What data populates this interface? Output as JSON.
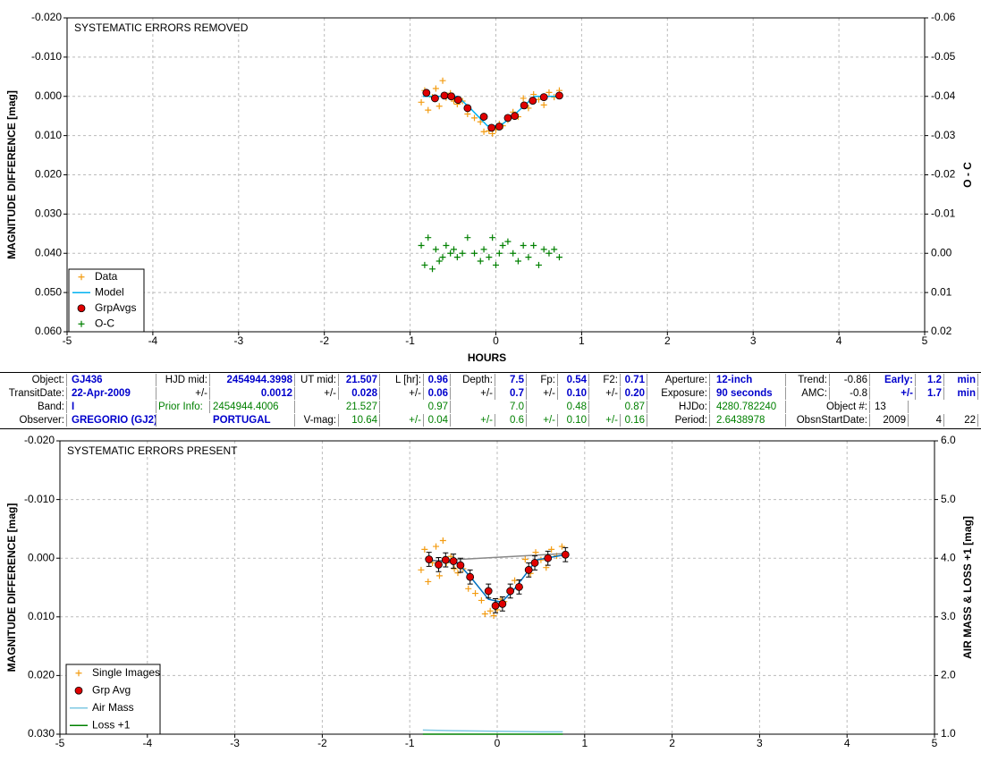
{
  "chart_data": [
    {
      "type": "scatter",
      "title": "SYSTEMATIC ERRORS REMOVED",
      "xlabel": "HOURS",
      "ylabel": "MAGNITUDE DIFFERENCE [mag]",
      "y2label": "O - C",
      "xlim": [
        -5,
        5
      ],
      "xticks": [
        -5,
        -4,
        -3,
        -2,
        -1,
        0,
        1,
        2,
        3,
        4,
        5
      ],
      "ylim": [
        0.06,
        -0.02
      ],
      "yticks": [
        {
          "value": -0.02,
          "label": "-0.020"
        },
        {
          "value": -0.01,
          "label": "-0.010"
        },
        {
          "value": 0,
          "label": "0.000"
        },
        {
          "value": 0.01,
          "label": "0.010"
        },
        {
          "value": 0.02,
          "label": "0.020"
        },
        {
          "value": 0.03,
          "label": "0.030"
        },
        {
          "value": 0.04,
          "label": "0.040"
        },
        {
          "value": 0.05,
          "label": "0.050"
        },
        {
          "value": 0.06,
          "label": "0.060"
        }
      ],
      "y2lim": [
        0.02,
        -0.06
      ],
      "y2ticks": [
        -0.06,
        -0.05,
        -0.04,
        -0.03,
        -0.02,
        -0.01,
        {
          "value": 0,
          "label": "0.00"
        },
        0.01,
        0.02
      ],
      "grid": true,
      "legend": "lower-left",
      "series": [
        {
          "name": "Data",
          "color": "#f39c12",
          "style": "plus",
          "x": [
            -0.87,
            -0.83,
            -0.79,
            -0.74,
            -0.7,
            -0.66,
            -0.62,
            -0.58,
            -0.53,
            -0.49,
            -0.45,
            -0.39,
            -0.33,
            -0.25,
            -0.18,
            -0.14,
            -0.08,
            -0.04,
            0.0,
            0.04,
            0.08,
            0.14,
            0.2,
            0.26,
            0.32,
            0.38,
            0.44,
            0.5,
            0.56,
            0.62,
            0.68,
            0.74
          ],
          "values": [
            0.0015,
            -0.0015,
            0.0035,
            0.0002,
            -0.002,
            0.0025,
            -0.004,
            0.0003,
            -0.0008,
            0.0012,
            0.002,
            0.0012,
            0.0045,
            0.0055,
            0.0065,
            0.009,
            0.0088,
            0.0095,
            0.0085,
            0.007,
            0.0075,
            0.006,
            0.004,
            0.0052,
            0.0005,
            0.003,
            -0.0005,
            0.0008,
            0.0022,
            -0.001,
            0.0002,
            -0.0015
          ]
        },
        {
          "name": "Model",
          "color": "#00b0f0",
          "style": "line",
          "x": [
            -0.85,
            -0.45,
            -0.3,
            -0.1,
            0.05,
            0.2,
            0.45,
            0.75
          ],
          "values": [
            0,
            0,
            0.003,
            0.0075,
            0.0075,
            0.005,
            0,
            0
          ]
        },
        {
          "name": "GrpAvgs",
          "color": "#e00000",
          "style": "circle",
          "x": [
            -0.81,
            -0.71,
            -0.6,
            -0.52,
            -0.44,
            -0.33,
            -0.14,
            -0.05,
            0.04,
            0.14,
            0.22,
            0.33,
            0.43,
            0.56,
            0.74
          ],
          "values": [
            -0.0009,
            0.0005,
            -0.0002,
            0,
            0.0009,
            0.003,
            0.0052,
            0.008,
            0.0077,
            0.0055,
            0.005,
            0.0023,
            0.0011,
            0.0002,
            -0.0002
          ]
        },
        {
          "name": "O-C",
          "color": "#008000",
          "style": "plus",
          "axis": "y2",
          "x": [
            -0.87,
            -0.83,
            -0.79,
            -0.74,
            -0.7,
            -0.66,
            -0.62,
            -0.58,
            -0.53,
            -0.49,
            -0.45,
            -0.39,
            -0.33,
            -0.25,
            -0.18,
            -0.14,
            -0.08,
            -0.04,
            0.0,
            0.04,
            0.08,
            0.14,
            0.2,
            0.26,
            0.32,
            0.38,
            0.44,
            0.5,
            0.56,
            0.62,
            0.68,
            0.74
          ],
          "values": [
            -0.002,
            0.003,
            -0.004,
            0.004,
            -0.001,
            0.002,
            0.001,
            -0.002,
            0.0,
            -0.001,
            0.001,
            0.0,
            -0.004,
            0.0,
            0.002,
            -0.001,
            0.001,
            -0.004,
            0.003,
            0.0,
            -0.002,
            -0.003,
            0.0,
            0.002,
            -0.002,
            0.001,
            -0.002,
            0.003,
            -0.001,
            0.0,
            -0.001,
            0.001
          ]
        }
      ]
    },
    {
      "type": "scatter",
      "title": "SYSTEMATIC ERRORS PRESENT",
      "ylabel": "MAGNITUDE DIFFERENCE [mag]",
      "y2label": "AIR MASS & LOSS +1 [mag]",
      "xlim": [
        -5,
        5
      ],
      "xticks": [
        -5,
        -4,
        -3,
        -2,
        -1,
        0,
        1,
        2,
        3,
        4,
        5
      ],
      "ylim": [
        0.03,
        -0.02
      ],
      "yticks": [
        {
          "value": -0.02,
          "label": "-0.020"
        },
        {
          "value": -0.01,
          "label": "-0.010"
        },
        {
          "value": 0,
          "label": "0.000"
        },
        {
          "value": 0.01,
          "label": "0.010"
        },
        {
          "value": 0.02,
          "label": "0.020"
        },
        {
          "value": 0.03,
          "label": "0.030"
        }
      ],
      "y2lim": [
        1,
        6
      ],
      "y2ticks": [
        {
          "value": 1,
          "label": "1.0"
        },
        {
          "value": 2,
          "label": "2.0"
        },
        {
          "value": 3,
          "label": "3.0"
        },
        {
          "value": 4,
          "label": "4.0"
        },
        {
          "value": 5,
          "label": "5.0"
        },
        {
          "value": 6,
          "label": "6.0"
        }
      ],
      "grid": true,
      "legend": "lower-left",
      "series": [
        {
          "name": "Single Images",
          "color": "#f39c12",
          "style": "plus",
          "x": [
            -0.87,
            -0.83,
            -0.79,
            -0.74,
            -0.7,
            -0.66,
            -0.62,
            -0.58,
            -0.53,
            -0.49,
            -0.45,
            -0.39,
            -0.33,
            -0.25,
            -0.18,
            -0.14,
            -0.08,
            -0.04,
            0.0,
            0.04,
            0.08,
            0.14,
            0.2,
            0.26,
            0.32,
            0.38,
            0.44,
            0.5,
            0.56,
            0.62,
            0.68,
            0.74
          ],
          "values": [
            0.002,
            -0.0015,
            0.004,
            0.0008,
            -0.002,
            0.003,
            -0.003,
            0.0008,
            -0.0003,
            0.0018,
            0.0025,
            0.0018,
            0.0052,
            0.006,
            0.0072,
            0.0095,
            0.009,
            0.0098,
            0.0088,
            0.007,
            0.0074,
            0.0058,
            0.0038,
            0.005,
            0.0002,
            0.0026,
            -0.001,
            0.0003,
            0.0016,
            -0.0015,
            -0.0004,
            -0.002
          ]
        },
        {
          "name": "Grp Avg",
          "color": "#e00000",
          "style": "circle",
          "x": [
            -0.78,
            -0.67,
            -0.59,
            -0.5,
            -0.42,
            -0.31,
            -0.1,
            -0.02,
            0.06,
            0.15,
            0.25,
            0.36,
            0.43,
            0.58,
            0.78
          ],
          "values": [
            0.0002,
            0.0011,
            0.0003,
            0.0005,
            0.0012,
            0.0032,
            0.0056,
            0.0081,
            0.0078,
            0.0056,
            0.0049,
            0.002,
            0.0008,
            0.0,
            -0.0006
          ],
          "errors": [
            0.0012,
            0.0012,
            0.0012,
            0.0012,
            0.0012,
            0.0012,
            0.0012,
            0.0012,
            0.0012,
            0.0012,
            0.0012,
            0.0012,
            0.0012,
            0.0012,
            0.0012
          ]
        },
        {
          "color": "#0070c0",
          "style": "line",
          "x": [
            -0.78,
            -0.45,
            -0.3,
            -0.1,
            0.05,
            0.2,
            0.45,
            0.78
          ],
          "values": [
            0.0003,
            0.0008,
            0.0033,
            0.007,
            0.0075,
            0.0052,
            0.0003,
            -0.0006
          ]
        },
        {
          "color": "#888888",
          "style": "line",
          "x": [
            -0.78,
            0.78
          ],
          "values": [
            0.0005,
            -0.0008
          ]
        },
        {
          "name": "Air Mass",
          "color": "#7ec8e3",
          "style": "line",
          "axis": "y2",
          "x": [
            -0.85,
            -0.5,
            0.0,
            0.5,
            0.75
          ],
          "values": [
            1.07,
            1.06,
            1.05,
            1.04,
            1.04
          ]
        },
        {
          "name": "Loss +1",
          "color": "#008000",
          "style": "line",
          "axis": "y2",
          "x": [
            -0.85,
            0.75
          ],
          "values": [
            1.0,
            1.0
          ]
        }
      ]
    }
  ],
  "table": {
    "rows": [
      [
        "Object:",
        "GJ436",
        "HJD mid:",
        "2454944.3998",
        "UT mid:",
        "21.507",
        "L [hr]:",
        "0.96",
        "Depth:",
        "7.5",
        "Fp:",
        "0.54",
        "F2:",
        "0.71",
        "Aperture:",
        "12-inch",
        "Trend:",
        "-0.86",
        "Early:",
        "1.2",
        "min"
      ],
      [
        "TransitDate:",
        "22-Apr-2009",
        "+/-",
        "0.0012",
        "+/-",
        "0.028",
        "+/-",
        "0.06",
        "+/-",
        "0.7",
        "+/-",
        "0.10",
        "+/-",
        "0.20",
        "Exposure:",
        "90 seconds",
        "AMC:",
        "-0.8",
        "+/-",
        "1.7",
        "min"
      ],
      [
        "Band:",
        "I",
        "Prior Info:",
        "2454944.4006",
        "21.527",
        "0.97",
        "7.0",
        "0.48",
        "0.87",
        "HJDo:",
        "4280.782240",
        "Object #:",
        "13"
      ],
      [
        "Observer:",
        "GREGORIO (GJ2)",
        "PORTUGAL",
        "V-mag:",
        "10.64",
        "+/-",
        "0.04",
        "+/-",
        "0.6",
        "+/-",
        "0.10",
        "+/-",
        "0.16",
        "Period:",
        "2.6438978",
        "ObsnStartDate:",
        "2009",
        "4",
        "22"
      ]
    ]
  }
}
